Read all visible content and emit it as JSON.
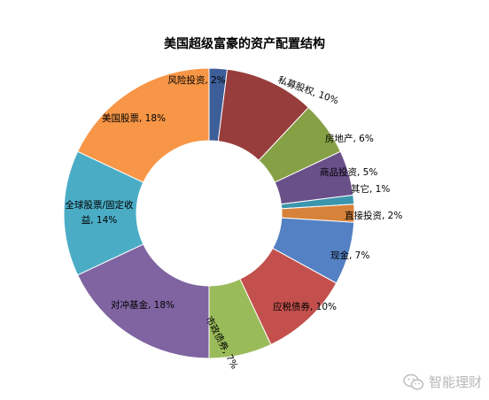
{
  "chart_data": {
    "type": "pie",
    "title": "美国超级富豪的资产配置结构",
    "slices": [
      {
        "name": "风险投资",
        "value": 2,
        "label": "风险投资, 2%",
        "color": "#3D5E98"
      },
      {
        "name": "私募股权",
        "value": 10,
        "label": "私募股权, 10%",
        "color": "#973D3B"
      },
      {
        "name": "房地产",
        "value": 6,
        "label": "房地产, 6%",
        "color": "#86A046"
      },
      {
        "name": "商品投资",
        "value": 5,
        "label": "商品投资, 5%",
        "color": "#6A5089"
      },
      {
        "name": "其它",
        "value": 1,
        "label": "其它, 1%",
        "color": "#3B95AD"
      },
      {
        "name": "直接投资",
        "value": 2,
        "label": "直接投资, 2%",
        "color": "#D7823B"
      },
      {
        "name": "现金",
        "value": 7,
        "label": "现金, 7%",
        "color": "#5381C3"
      },
      {
        "name": "应税债券",
        "value": 10,
        "label": "应税债券, 10%",
        "color": "#C3504C"
      },
      {
        "name": "市政债券",
        "value": 7,
        "label": "市政债券, 7%",
        "color": "#9ABB59"
      },
      {
        "name": "对冲基金",
        "value": 18,
        "label": "对冲基金, 18%",
        "color": "#7F64A1"
      },
      {
        "name": "全球股票/固定收益",
        "value": 14,
        "label": "全球股票/固定收益, 14%",
        "label_lines": [
          "全球股票/固定收",
          "益, 14%"
        ],
        "color": "#4BACC6"
      },
      {
        "name": "美国股票",
        "value": 18,
        "label": "美国股票, 18%",
        "color": "#F79646"
      }
    ]
  },
  "watermark": {
    "text": "智能理财",
    "icon": "wechat-icon"
  }
}
